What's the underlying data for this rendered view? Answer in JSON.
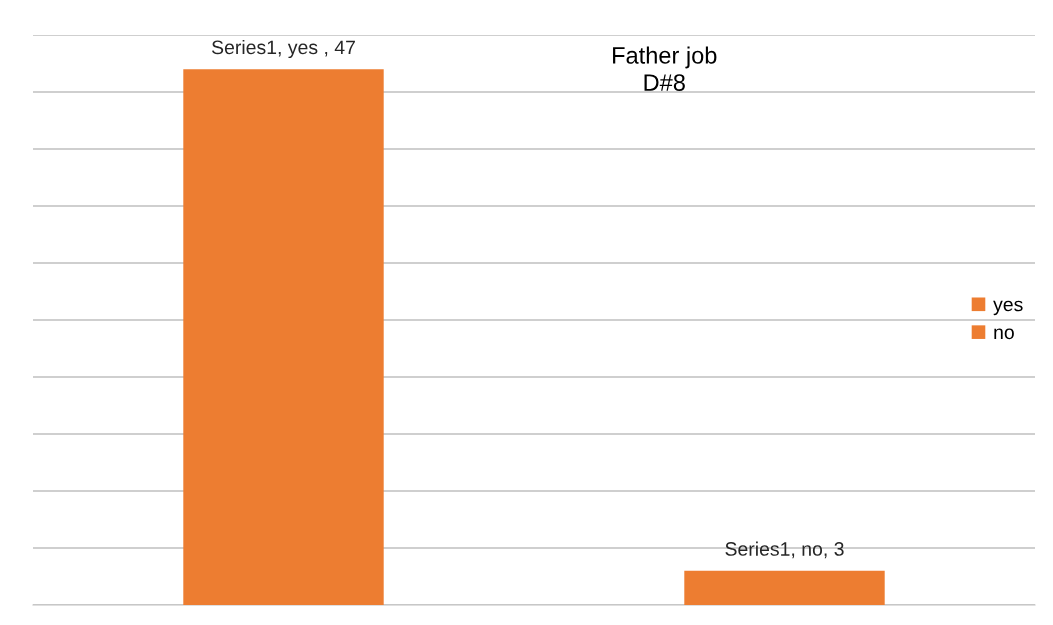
{
  "chart_data": {
    "type": "bar",
    "title": "Father job\nD#8",
    "categories": [
      null,
      null
    ],
    "stacked": true,
    "series": [
      {
        "name": "yes",
        "color": "#ed7d31",
        "values": [
          47,
          null
        ],
        "value_labels": [
          "Series1, yes , 47",
          null
        ]
      },
      {
        "name": "no",
        "color": "#ed7d31",
        "values": [
          null,
          3
        ],
        "value_labels": [
          null,
          "Series1, no, 3"
        ]
      }
    ],
    "ylim": [
      0,
      50
    ],
    "yticks": [
      {
        "value": 0,
        "label": null
      },
      {
        "value": 5,
        "label": null
      },
      {
        "value": 10,
        "label": null
      },
      {
        "value": 15,
        "label": null
      },
      {
        "value": 20,
        "label": null
      },
      {
        "value": 25,
        "label": null
      },
      {
        "value": 30,
        "label": null
      },
      {
        "value": 35,
        "label": null
      },
      {
        "value": 40,
        "label": null
      },
      {
        "value": 45,
        "label": null
      },
      {
        "value": 50,
        "label": null
      }
    ],
    "grid": "y",
    "legend": "right"
  }
}
